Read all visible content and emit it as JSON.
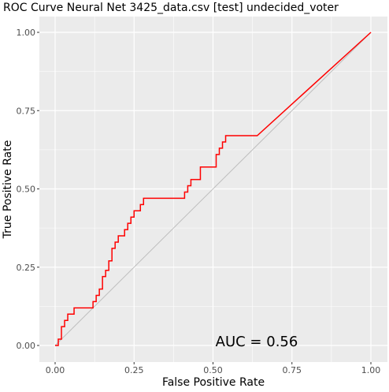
{
  "chart_data": {
    "type": "line",
    "title": "ROC Curve Neural Net 3425_data.csv [test] undecided_voter",
    "xlabel": "False Positive Rate",
    "ylabel": "True Positive Rate",
    "xlim": [
      0,
      1
    ],
    "ylim": [
      0,
      1
    ],
    "x_ticks": [
      "0.00",
      "0.25",
      "0.50",
      "0.75",
      "1.00"
    ],
    "y_ticks": [
      "0.00",
      "0.25",
      "0.50",
      "0.75",
      "1.00"
    ],
    "grid": true,
    "legend": "none",
    "annotation": "AUC = 0.56",
    "colors": {
      "curve": "#ff0000",
      "reference": "#bebebe",
      "panel": "#ebebeb",
      "grid": "#ffffff"
    },
    "series": [
      {
        "x": [
          0.0,
          0.01,
          0.01,
          0.02,
          0.02,
          0.03,
          0.03,
          0.04,
          0.04,
          0.06,
          0.06,
          0.12,
          0.12,
          0.13,
          0.13,
          0.14,
          0.14,
          0.15,
          0.15,
          0.16,
          0.16,
          0.17,
          0.17,
          0.18,
          0.18,
          0.19,
          0.19,
          0.2,
          0.2,
          0.22,
          0.22,
          0.23,
          0.23,
          0.24,
          0.24,
          0.25,
          0.25,
          0.27,
          0.27,
          0.28,
          0.28,
          0.29,
          0.29,
          0.41,
          0.41,
          0.42,
          0.42,
          0.43,
          0.43,
          0.46,
          0.46,
          0.51,
          0.51,
          0.52,
          0.52,
          0.53,
          0.53,
          0.54,
          0.54,
          0.64,
          1.0
        ],
        "y": [
          0.0,
          0.0,
          0.02,
          0.02,
          0.06,
          0.06,
          0.08,
          0.08,
          0.1,
          0.1,
          0.12,
          0.12,
          0.14,
          0.14,
          0.16,
          0.16,
          0.18,
          0.18,
          0.22,
          0.22,
          0.24,
          0.24,
          0.27,
          0.27,
          0.31,
          0.31,
          0.33,
          0.33,
          0.35,
          0.35,
          0.37,
          0.37,
          0.39,
          0.39,
          0.41,
          0.41,
          0.43,
          0.43,
          0.45,
          0.45,
          0.47,
          0.47,
          0.47,
          0.47,
          0.49,
          0.49,
          0.51,
          0.51,
          0.53,
          0.53,
          0.57,
          0.57,
          0.61,
          0.61,
          0.63,
          0.63,
          0.65,
          0.65,
          0.67,
          0.67,
          1.0
        ]
      },
      {
        "x": [
          0,
          1
        ],
        "y": [
          0,
          1
        ]
      }
    ]
  }
}
